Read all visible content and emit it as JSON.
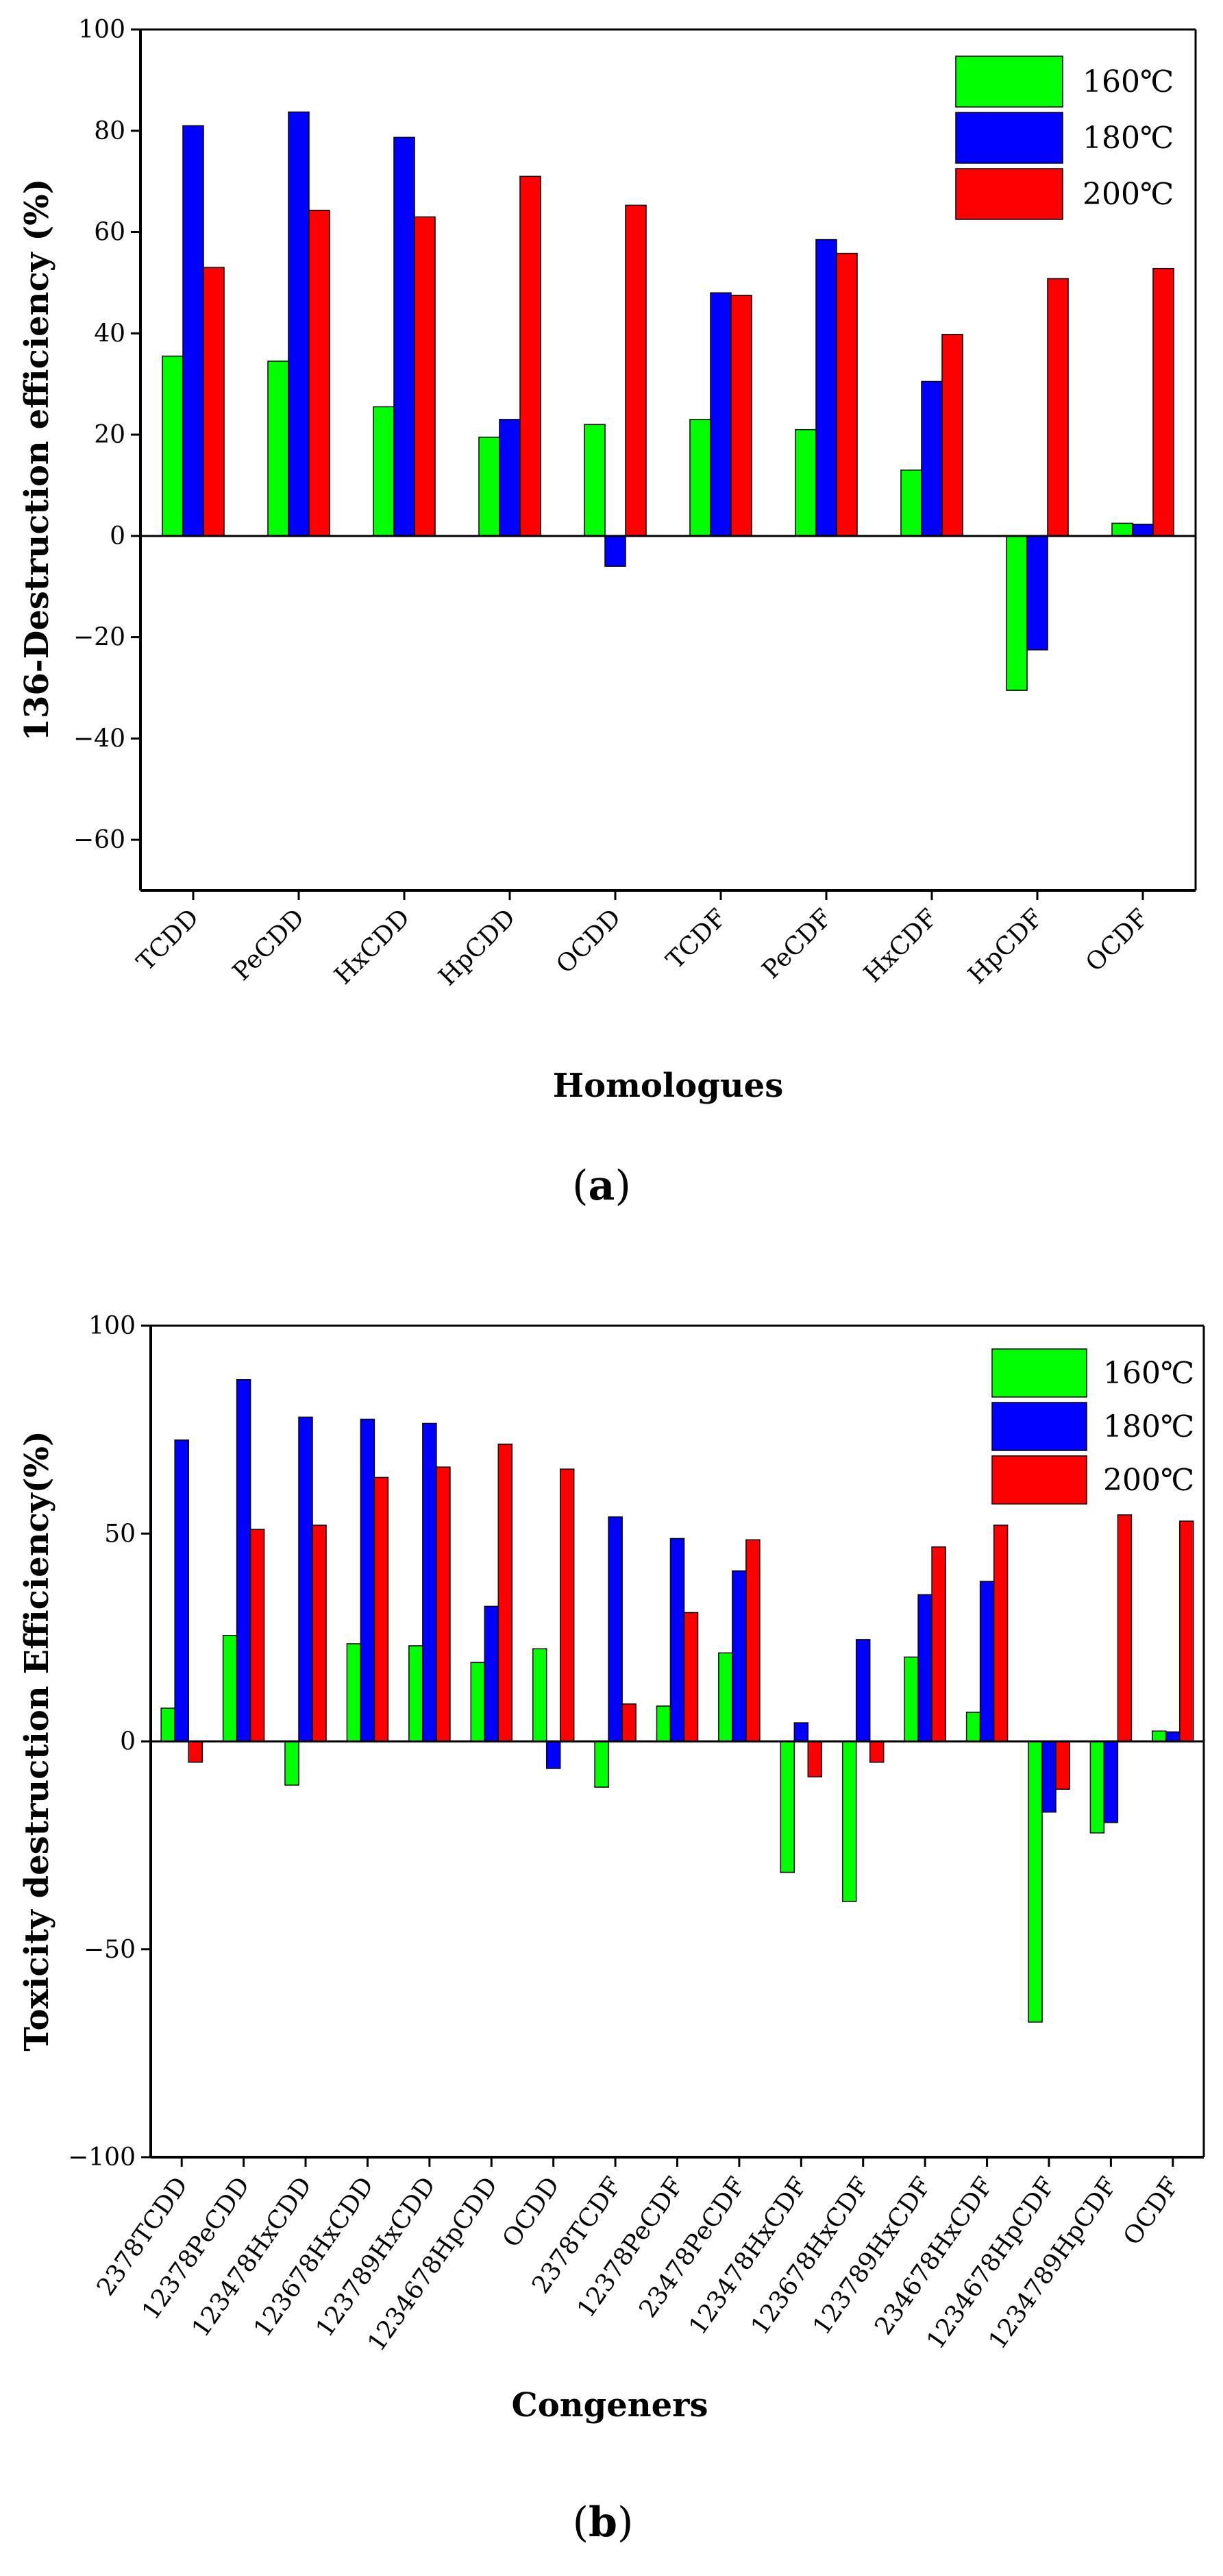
{
  "colors": {
    "s160": "#00ff00",
    "s180": "#0000ff",
    "s200": "#ff0000",
    "axis": "#000000"
  },
  "chart_data": [
    {
      "id": "a",
      "type": "bar",
      "caption_label": "a",
      "xlabel": "Homologues",
      "ylabel": "136-Destruction efficiency (%)",
      "ylim": [
        -70,
        100
      ],
      "yticks": [
        -60,
        -40,
        -20,
        0,
        20,
        40,
        60,
        80,
        100
      ],
      "ytick_labels": [
        "−60",
        "−40",
        "−20",
        "0",
        "20",
        "40",
        "60",
        "80",
        "100"
      ],
      "categories": [
        "TCDD",
        "PeCDD",
        "HxCDD",
        "HpCDD",
        "OCDD",
        "TCDF",
        "PeCDF",
        "HxCDF",
        "HpCDF",
        "OCDF"
      ],
      "series": [
        {
          "name": "160℃",
          "color_key": "s160",
          "values": [
            35.5,
            34.5,
            25.5,
            19.5,
            22,
            23,
            21,
            13,
            -30.5,
            2.5
          ]
        },
        {
          "name": "180℃",
          "color_key": "s180",
          "values": [
            81,
            83.7,
            78.7,
            23,
            -6,
            48,
            58.5,
            30.5,
            -22.5,
            2.3
          ]
        },
        {
          "name": "200℃",
          "color_key": "s200",
          "values": [
            53,
            64.3,
            63,
            71,
            65.3,
            47.5,
            55.8,
            39.8,
            50.8,
            52.8
          ]
        }
      ]
    },
    {
      "id": "b",
      "type": "bar",
      "caption_label": "b",
      "xlabel": "Congeners",
      "ylabel": "Toxicity destruction Efficiency(%)",
      "ylim": [
        -100,
        100
      ],
      "yticks": [
        -100,
        -50,
        0,
        50,
        100
      ],
      "ytick_labels": [
        "−100",
        "−50",
        "0",
        "50",
        "100"
      ],
      "categories": [
        "2378TCDD",
        "12378PeCDD",
        "123478HxCDD",
        "123678HxCDD",
        "123789HxCDD",
        "1234678HpCDD",
        "OCDD",
        "2378TCDF",
        "12378PeCDF",
        "23478PeCDF",
        "123478HxCDF",
        "123678HxCDF",
        "123789HxCDF",
        "234678HxCDF",
        "1234678HpCDF",
        "1234789HpCDF",
        "OCDF"
      ],
      "series": [
        {
          "name": "160℃",
          "color_key": "s160",
          "values": [
            8,
            25.5,
            -10.5,
            23.5,
            23,
            19,
            22.3,
            -11,
            8.5,
            21.3,
            -31.5,
            -38.5,
            20.3,
            7,
            -67.5,
            -22,
            2.5
          ]
        },
        {
          "name": "180℃",
          "color_key": "s180",
          "values": [
            72.5,
            87,
            78,
            77.5,
            76.5,
            32.5,
            -6.5,
            54,
            48.8,
            41,
            4.5,
            24.5,
            35.3,
            38.5,
            -17,
            -19.5,
            2.3
          ]
        },
        {
          "name": "200℃",
          "color_key": "s200",
          "values": [
            -5,
            51,
            52,
            63.5,
            66,
            71.5,
            65.5,
            9,
            31,
            48.5,
            -8.5,
            -5,
            46.8,
            52,
            -11.5,
            54.5,
            53
          ]
        }
      ]
    }
  ]
}
